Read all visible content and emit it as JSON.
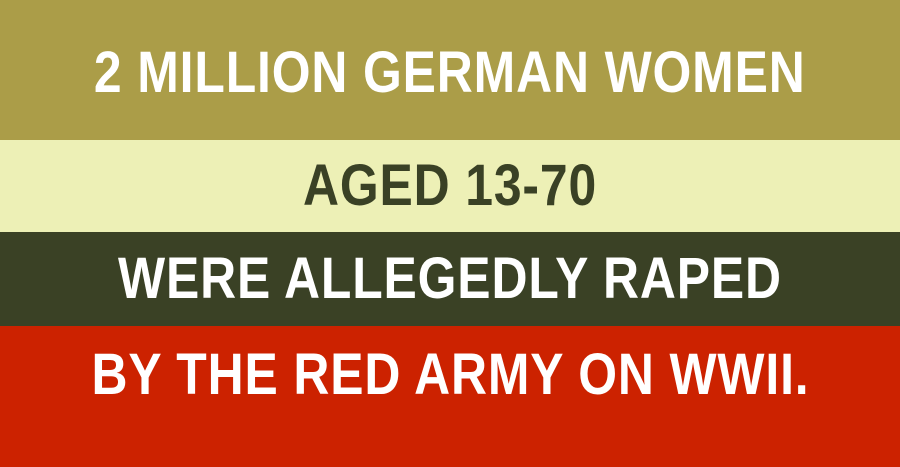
{
  "bands": [
    {
      "text": "2 MILLION GERMAN WOMEN",
      "background": "#ab9d48",
      "color": "#ffffff"
    },
    {
      "text": "AGED 13-70",
      "background": "#edf0b6",
      "color": "#3a4125"
    },
    {
      "text": "WERE ALLEGEDLY RAPED",
      "background": "#3a4125",
      "color": "#ffffff"
    },
    {
      "text": "BY THE RED ARMY ON WWII.",
      "background": "#cc2200",
      "color": "#ffffff"
    }
  ]
}
